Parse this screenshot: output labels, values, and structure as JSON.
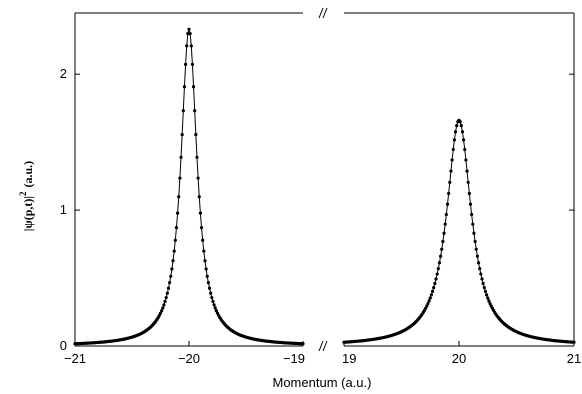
{
  "chart_data": {
    "type": "scatter",
    "xlabel": "Momentum (a.u.)",
    "ylabel": "|ψ(p,t)|² (a.u.)",
    "ylim": [
      0,
      2.45
    ],
    "yticks": [
      0,
      1,
      2
    ],
    "broken_x_axis": true,
    "segments": [
      {
        "xlim": [
          -21,
          -19
        ],
        "xticks": [
          -21,
          -20,
          -19
        ],
        "tick_labels": [
          "−21",
          "−20",
          "−19"
        ]
      },
      {
        "xlim": [
          19,
          21
        ],
        "xticks": [
          19,
          20,
          21
        ],
        "tick_labels": [
          "19",
          "20",
          "21"
        ]
      }
    ],
    "series": [
      {
        "peak_x": -20,
        "peak_y": 2.33,
        "hwhm": 0.085,
        "x_range": [
          -21,
          -19
        ],
        "markers": true,
        "line": true
      },
      {
        "peak_x": 20,
        "peak_y": 1.66,
        "hwhm": 0.13,
        "x_range": [
          19,
          21
        ],
        "markers": true,
        "line": true
      }
    ],
    "grid": false,
    "legend": "none"
  }
}
